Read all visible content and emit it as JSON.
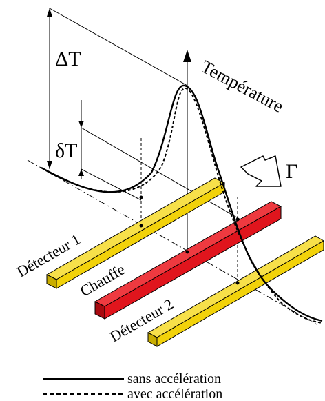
{
  "labels": {
    "delta_T_big": "ΔT",
    "delta_T_small": "δT",
    "temperature": "Température",
    "gamma": "Γ",
    "detector1": "Détecteur 1",
    "heater": "Chauffe",
    "detector2": "Détecteur 2"
  },
  "legend": {
    "solid": "sans accélération",
    "dashed": "avec accélération"
  },
  "colors": {
    "detector": "#f2d20a",
    "detector_side": "#c9ad00",
    "detector_top": "#f7e04a",
    "heater": "#e0151d",
    "heater_side": "#a80a10",
    "heater_top": "#ee3a40",
    "line": "#000000"
  }
}
